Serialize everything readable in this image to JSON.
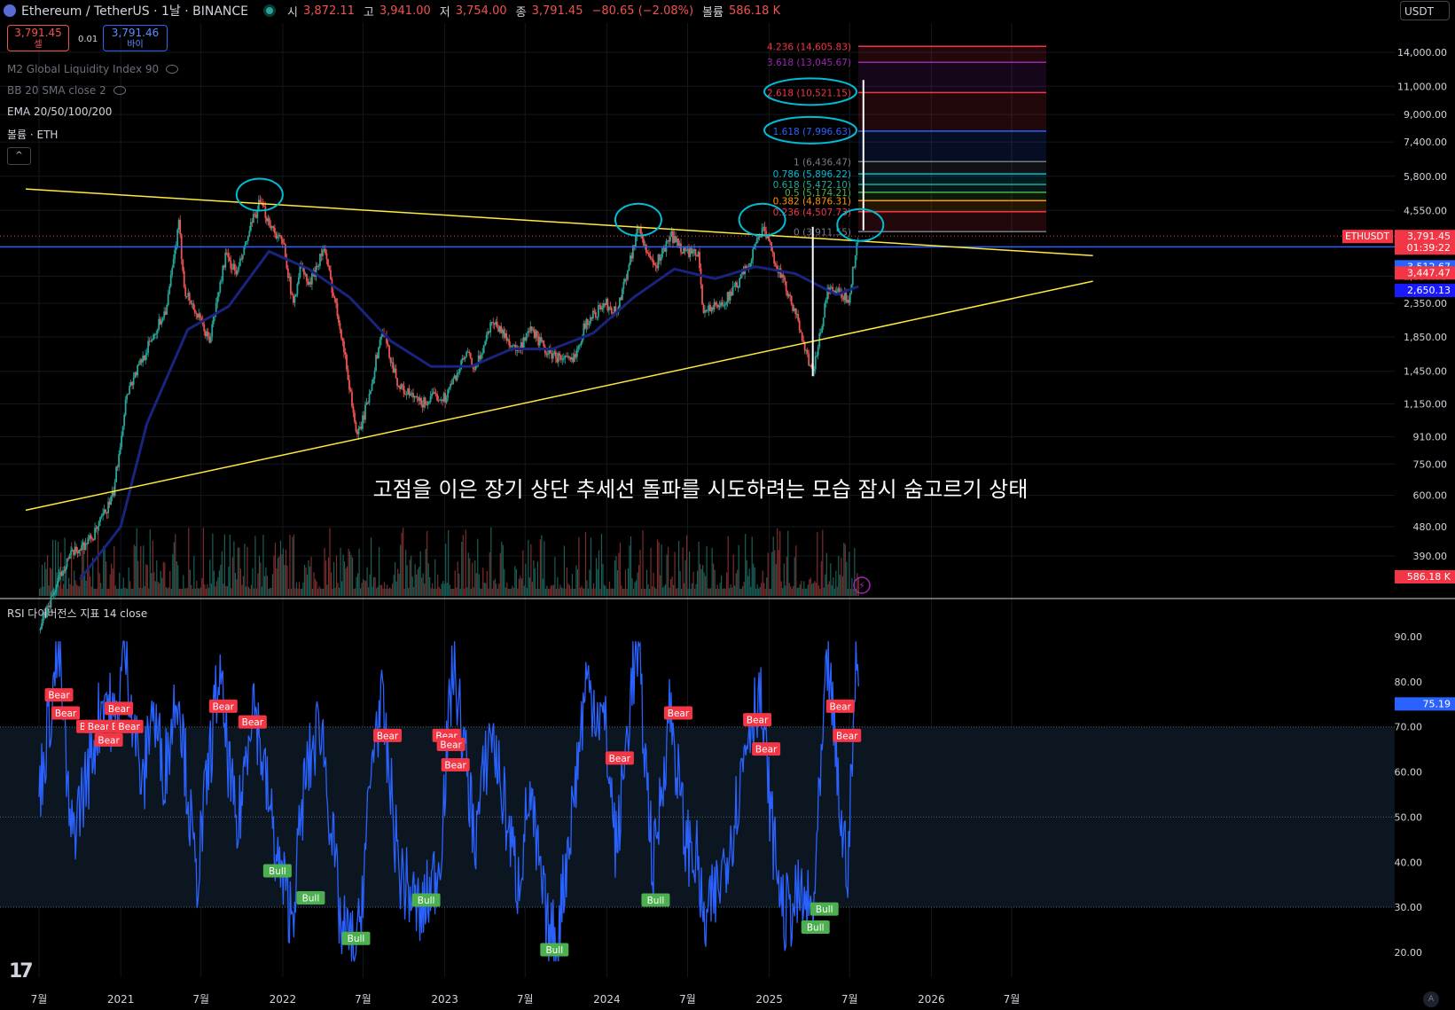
{
  "header": {
    "symbol": "Ethereum / TetherUS · 1날 · BINANCE",
    "open_label": "시",
    "open": "3,872.11",
    "high_label": "고",
    "high": "3,941.00",
    "low_label": "저",
    "low": "3,754.00",
    "close_label": "종",
    "close": "3,791.45",
    "change": "−80.65 (−2.08%)",
    "vol_label": "볼륨",
    "volume": "586.18 K"
  },
  "quote": {
    "sell_price": "3,791.45",
    "sell_label": "셀",
    "spread": "0.01",
    "buy_price": "3,791.46",
    "buy_label": "바이"
  },
  "indicators": [
    "M2 Global Liquidity Index 90",
    "BB 20 SMA close 2",
    "EMA 20/50/100/200",
    "볼륨 · ETH"
  ],
  "collapse_icon": "^",
  "currency_button": "USDT",
  "annotation": "고점을 이은 장기 상단 추세선 돌파를 시도하려는 모습 잠시 숨고르기 상태",
  "rsi_title": "RSI 다이버전스 지표 14 close",
  "tv_logo": "17",
  "corner_button": "A",
  "colors": {
    "background": "#000000",
    "up": "#26a69a",
    "down": "#ef5350",
    "ema": "#1a237e",
    "trendline": "#ffeb3b",
    "level_line": "#2962ff",
    "rsi_line": "#2962ff",
    "circle": "#00bcd4"
  },
  "chart_data": [
    {
      "type": "candlestick",
      "scale": "log",
      "ylim": [
        330,
        16000
      ],
      "y_ticks": [
        14000,
        11000,
        9000,
        7400,
        5800,
        4550,
        2850,
        2350,
        1850,
        1450,
        1150,
        910,
        750,
        600,
        480,
        390
      ],
      "x_ticks": [
        "7월",
        "2021",
        "7월",
        "2022",
        "7월",
        "2023",
        "7월",
        "2024",
        "7월",
        "2025",
        "7월",
        "2026",
        "7월"
      ],
      "x_tick_dates": [
        "2020-07-01",
        "2021-01-01",
        "2021-07-01",
        "2022-01-01",
        "2022-07-01",
        "2023-01-01",
        "2023-07-01",
        "2024-01-01",
        "2024-07-01",
        "2025-01-01",
        "2025-07-01",
        "2026-01-01",
        "2026-07-01"
      ],
      "price_path": [
        [
          "2020-07-01",
          230
        ],
        [
          "2020-09-01",
          380
        ],
        [
          "2020-11-01",
          450
        ],
        [
          "2020-12-15",
          600
        ],
        [
          "2021-01-15",
          1250
        ],
        [
          "2021-03-01",
          1700
        ],
        [
          "2021-04-15",
          2300
        ],
        [
          "2021-05-12",
          4100
        ],
        [
          "2021-05-25",
          2600
        ],
        [
          "2021-07-20",
          1800
        ],
        [
          "2021-08-25",
          3300
        ],
        [
          "2021-09-20",
          2900
        ],
        [
          "2021-10-25",
          4200
        ],
        [
          "2021-11-10",
          4800
        ],
        [
          "2021-12-10",
          4000
        ],
        [
          "2022-01-05",
          3500
        ],
        [
          "2022-01-24",
          2300
        ],
        [
          "2022-02-10",
          3100
        ],
        [
          "2022-03-01",
          2650
        ],
        [
          "2022-04-03",
          3500
        ],
        [
          "2022-05-12",
          1950
        ],
        [
          "2022-06-18",
          900
        ],
        [
          "2022-07-10",
          1150
        ],
        [
          "2022-08-13",
          1950
        ],
        [
          "2022-09-20",
          1300
        ],
        [
          "2022-11-09",
          1150
        ],
        [
          "2022-12-15",
          1220
        ],
        [
          "2023-01-01",
          1200
        ],
        [
          "2023-02-20",
          1650
        ],
        [
          "2023-03-10",
          1450
        ],
        [
          "2023-04-18",
          2100
        ],
        [
          "2023-06-15",
          1650
        ],
        [
          "2023-07-15",
          1950
        ],
        [
          "2023-08-20",
          1650
        ],
        [
          "2023-10-15",
          1550
        ],
        [
          "2023-11-15",
          2050
        ],
        [
          "2023-12-28",
          2350
        ],
        [
          "2024-01-23",
          2200
        ],
        [
          "2024-03-12",
          4050
        ],
        [
          "2024-04-15",
          3000
        ],
        [
          "2024-05-25",
          3800
        ],
        [
          "2024-06-25",
          3400
        ],
        [
          "2024-07-25",
          3300
        ],
        [
          "2024-08-05",
          2250
        ],
        [
          "2024-09-10",
          2300
        ],
        [
          "2024-10-15",
          2600
        ],
        [
          "2024-11-15",
          3100
        ],
        [
          "2024-12-16",
          4050
        ],
        [
          "2025-01-10",
          3300
        ],
        [
          "2025-02-03",
          2700
        ],
        [
          "2025-03-10",
          2000
        ],
        [
          "2025-04-09",
          1400
        ],
        [
          "2025-05-13",
          2600
        ],
        [
          "2025-06-15",
          2500
        ],
        [
          "2025-06-28",
          2400
        ],
        [
          "2025-07-16",
          3500
        ],
        [
          "2025-07-21",
          3791.45
        ]
      ],
      "ema_path": [
        [
          "2020-10-01",
          330
        ],
        [
          "2021-01-01",
          480
        ],
        [
          "2021-03-01",
          1000
        ],
        [
          "2021-06-01",
          1950
        ],
        [
          "2021-09-01",
          2300
        ],
        [
          "2021-12-01",
          3400
        ],
        [
          "2022-03-01",
          3000
        ],
        [
          "2022-06-01",
          2450
        ],
        [
          "2022-09-01",
          1800
        ],
        [
          "2022-12-01",
          1500
        ],
        [
          "2023-03-01",
          1500
        ],
        [
          "2023-06-01",
          1700
        ],
        [
          "2023-09-01",
          1700
        ],
        [
          "2023-12-01",
          1900
        ],
        [
          "2024-03-01",
          2450
        ],
        [
          "2024-06-01",
          3000
        ],
        [
          "2024-09-01",
          2800
        ],
        [
          "2024-12-01",
          3050
        ],
        [
          "2025-03-01",
          2900
        ],
        [
          "2025-06-01",
          2500
        ],
        [
          "2025-07-21",
          2650
        ]
      ],
      "price_labels": [
        {
          "label": "ETHUSDT",
          "value": 3791.45,
          "text": "3,791.45",
          "sub": "01:39:22",
          "color": "#f23645"
        },
        {
          "value": 3512.67,
          "text": "3,512.67",
          "color": "#2962ff"
        },
        {
          "value": 3447.47,
          "text": "3,447.47",
          "color": "#f23645"
        },
        {
          "value": 2650.13,
          "text": "2,650.13",
          "color": "#1a1aff"
        },
        {
          "text": "586.18 K",
          "color": "#f23645"
        }
      ],
      "horizontal_lines": [
        3512.67
      ],
      "trendlines": [
        {
          "from": [
            "2020-06-01",
            5300
          ],
          "to": [
            "2026-12-31",
            3300
          ]
        },
        {
          "from": [
            "2020-06-01",
            540
          ],
          "to": [
            "2026-12-31",
            2750
          ]
        }
      ],
      "fib_levels": [
        {
          "ratio": "4.236",
          "value": "14,605.83",
          "price": 14605.83,
          "color": "#f23645"
        },
        {
          "ratio": "3.618",
          "value": "13,045.67",
          "price": 13045.67,
          "color": "#9c27b0"
        },
        {
          "ratio": "2.618",
          "value": "10,521.15",
          "price": 10521.15,
          "color": "#f23645"
        },
        {
          "ratio": "1.618",
          "value": "7,996.63",
          "price": 7996.63,
          "color": "#2962ff"
        },
        {
          "ratio": "1",
          "value": "6,436.47",
          "price": 6436.47,
          "color": "#787b86"
        },
        {
          "ratio": "0.786",
          "value": "5,896.22",
          "price": 5896.22,
          "color": "#00bcd4"
        },
        {
          "ratio": "0.618",
          "value": "5,472.10",
          "price": 5472.1,
          "color": "#26a69a"
        },
        {
          "ratio": "0.5",
          "value": "5,174.21",
          "price": 5174.21,
          "color": "#4caf50"
        },
        {
          "ratio": "0.382",
          "value": "4,876.31",
          "price": 4876.31,
          "color": "#ff9800"
        },
        {
          "ratio": "0.236",
          "value": "4,507.73",
          "price": 4507.73,
          "color": "#f23645"
        },
        {
          "ratio": "0",
          "value": "3,911.55",
          "price": 3911.55,
          "color": "#787b86"
        }
      ],
      "vertical_markers": [
        {
          "date": "2025-04-09",
          "from": 1400,
          "to": 4050
        },
        {
          "date": "2025-08-01",
          "from": 3950,
          "to": 11500
        }
      ],
      "circled": [
        {
          "date": "2021-11-10",
          "price": 4900
        },
        {
          "date": "2024-03-12",
          "price": 4100
        },
        {
          "date": "2024-12-16",
          "price": 4100
        },
        {
          "date": "2025-07-25",
          "price": 3950
        }
      ]
    },
    {
      "type": "line",
      "title": "RSI 다이버전스 지표 14 close",
      "ylim": [
        15,
        95
      ],
      "y_ticks": [
        90,
        80,
        70,
        60,
        50,
        40,
        30,
        20
      ],
      "current": "75.19",
      "band": [
        30,
        70
      ],
      "rsi_path": [
        [
          "2020-07-01",
          55
        ],
        [
          "2020-08-15",
          88
        ],
        [
          "2020-09-10",
          45
        ],
        [
          "2020-10-20",
          60
        ],
        [
          "2020-11-25",
          78
        ],
        [
          "2020-12-20",
          70
        ],
        [
          "2021-01-10",
          88
        ],
        [
          "2021-02-20",
          55
        ],
        [
          "2021-03-10",
          75
        ],
        [
          "2021-04-10",
          60
        ],
        [
          "2021-05-10",
          80
        ],
        [
          "2021-06-20",
          35
        ],
        [
          "2021-08-10",
          82
        ],
        [
          "2021-09-20",
          45
        ],
        [
          "2021-10-25",
          78
        ],
        [
          "2021-12-20",
          40
        ],
        [
          "2022-01-22",
          28
        ],
        [
          "2022-02-20",
          58
        ],
        [
          "2022-03-28",
          72
        ],
        [
          "2022-05-12",
          25
        ],
        [
          "2022-06-18",
          20
        ],
        [
          "2022-07-28",
          70
        ],
        [
          "2022-08-13",
          74
        ],
        [
          "2022-09-20",
          38
        ],
        [
          "2022-11-09",
          28
        ],
        [
          "2022-12-20",
          40
        ],
        [
          "2023-01-20",
          85
        ],
        [
          "2023-03-10",
          45
        ],
        [
          "2023-04-15",
          70
        ],
        [
          "2023-06-15",
          35
        ],
        [
          "2023-07-10",
          55
        ],
        [
          "2023-08-20",
          25
        ],
        [
          "2023-09-10",
          22
        ],
        [
          "2023-10-25",
          60
        ],
        [
          "2023-11-15",
          80
        ],
        [
          "2023-12-28",
          70
        ],
        [
          "2024-01-23",
          42
        ],
        [
          "2024-02-28",
          82
        ],
        [
          "2024-03-12",
          85
        ],
        [
          "2024-04-15",
          38
        ],
        [
          "2024-05-22",
          75
        ],
        [
          "2024-06-25",
          45
        ],
        [
          "2024-07-25",
          40
        ],
        [
          "2024-08-05",
          25
        ],
        [
          "2024-09-10",
          35
        ],
        [
          "2024-10-15",
          50
        ],
        [
          "2024-11-15",
          70
        ],
        [
          "2024-12-10",
          78
        ],
        [
          "2025-01-10",
          45
        ],
        [
          "2025-02-03",
          28
        ],
        [
          "2025-03-10",
          32
        ],
        [
          "2025-04-09",
          28
        ],
        [
          "2025-05-13",
          85
        ],
        [
          "2025-06-15",
          45
        ],
        [
          "2025-06-28",
          40
        ],
        [
          "2025-07-16",
          87
        ],
        [
          "2025-07-21",
          75.19
        ]
      ],
      "signals": [
        {
          "text": "Bear",
          "date": "2020-08-15",
          "value": 77
        },
        {
          "text": "Bear",
          "date": "2020-08-30",
          "value": 73
        },
        {
          "text": "Bear",
          "date": "2020-10-25",
          "value": 70
        },
        {
          "text": "Bear",
          "date": "2020-11-12",
          "value": 70
        },
        {
          "text": "Bear",
          "date": "2020-12-05",
          "value": 67
        },
        {
          "text": "Bear",
          "date": "2020-12-28",
          "value": 74
        },
        {
          "text": "Bear",
          "date": "2021-01-05",
          "value": 70
        },
        {
          "text": "Bear",
          "date": "2021-01-20",
          "value": 70
        },
        {
          "text": "Bear",
          "date": "2021-08-20",
          "value": 74.5
        },
        {
          "text": "Bear",
          "date": "2021-10-25",
          "value": 71
        },
        {
          "text": "Bull",
          "date": "2021-12-20",
          "value": 38
        },
        {
          "text": "Bull",
          "date": "2022-03-05",
          "value": 32
        },
        {
          "text": "Bull",
          "date": "2022-06-15",
          "value": 23
        },
        {
          "text": "Bear",
          "date": "2022-08-25",
          "value": 68
        },
        {
          "text": "Bull",
          "date": "2022-11-20",
          "value": 31.5
        },
        {
          "text": "Bear",
          "date": "2023-01-05",
          "value": 68
        },
        {
          "text": "Bear",
          "date": "2023-01-15",
          "value": 66
        },
        {
          "text": "Bear",
          "date": "2023-01-25",
          "value": 61.5
        },
        {
          "text": "Bull",
          "date": "2023-09-05",
          "value": 20.5
        },
        {
          "text": "Bear",
          "date": "2024-01-30",
          "value": 63
        },
        {
          "text": "Bull",
          "date": "2024-04-20",
          "value": 31.5
        },
        {
          "text": "Bear",
          "date": "2024-06-10",
          "value": 73
        },
        {
          "text": "Bear",
          "date": "2024-12-05",
          "value": 71.5
        },
        {
          "text": "Bear",
          "date": "2024-12-25",
          "value": 65
        },
        {
          "text": "Bull",
          "date": "2025-04-15",
          "value": 25.5
        },
        {
          "text": "Bull",
          "date": "2025-05-05",
          "value": 29.5
        },
        {
          "text": "Bear",
          "date": "2025-06-10",
          "value": 74.5
        },
        {
          "text": "Bear",
          "date": "2025-06-25",
          "value": 68
        }
      ]
    }
  ]
}
